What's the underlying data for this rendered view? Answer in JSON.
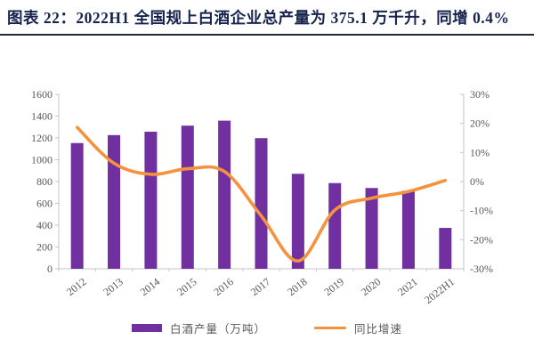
{
  "header": {
    "title": "图表 22：2022H1 全国规上白酒企业总产量为 375.1 万千升，同增 0.4%",
    "title_color": "#15234e",
    "rule_color": "#20263d"
  },
  "chart_data": {
    "type": "bar",
    "title": "2022H1 全国规上白酒企业总产量为 375.1 万千升，同增 0.4%",
    "categories": [
      "2012",
      "2013",
      "2014",
      "2015",
      "2016",
      "2017",
      "2018",
      "2019",
      "2020",
      "2021",
      "2022H1"
    ],
    "series": [
      {
        "name": "白酒产量（万吨）",
        "type": "bar",
        "axis": "left",
        "color": "#7030A0",
        "values": [
          1153.1,
          1226.2,
          1257.1,
          1312.8,
          1358.4,
          1198.1,
          871.2,
          785.9,
          740.7,
          715.6,
          375.1
        ]
      },
      {
        "name": "同比增速",
        "type": "line",
        "axis": "right",
        "color": "#F5923E",
        "values": [
          18.6,
          6.3,
          2.5,
          4.4,
          3.5,
          -11.8,
          -27.3,
          -9.8,
          -5.7,
          -3.4,
          0.4
        ]
      }
    ],
    "left_axis": {
      "min": 0,
      "max": 1600,
      "step": 200,
      "tick_labels": [
        "0",
        "200",
        "400",
        "600",
        "800",
        "1000",
        "1200",
        "1400",
        "1600"
      ]
    },
    "right_axis": {
      "min": -30,
      "max": 30,
      "step": 10,
      "suffix": "%",
      "tick_labels": [
        "-30%",
        "-20%",
        "-10%",
        "0%",
        "10%",
        "20%",
        "30%"
      ]
    },
    "grid": false,
    "legend_position": "bottom",
    "axis_text_color": "#595959",
    "axis_line_color": "#c6c6c6",
    "xlabel": "",
    "ylabel_left": "",
    "ylabel_right": ""
  }
}
